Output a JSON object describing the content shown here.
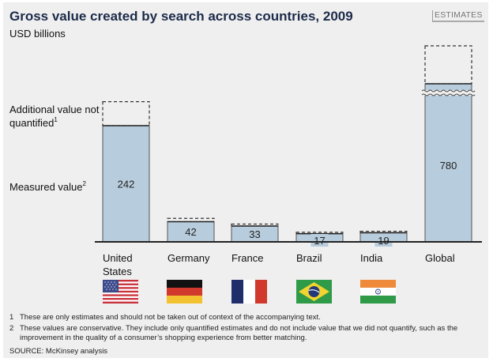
{
  "header": {
    "title": "Gross value created by search across countries, 2009",
    "subtitle": "USD billions",
    "badge": "ESTIMATES"
  },
  "legend": {
    "additional": "Additional value not quantified",
    "additional_sup": "1",
    "measured": "Measured value",
    "measured_sup": "2"
  },
  "chart_data": {
    "type": "bar",
    "title": "Gross value created by search across countries, 2009",
    "ylabel": "USD billions",
    "xlabel": "",
    "categories": [
      "United States",
      "Germany",
      "France",
      "Brazil",
      "India",
      "Global"
    ],
    "series": [
      {
        "name": "Measured value",
        "values": [
          242,
          42,
          33,
          17,
          19,
          780
        ]
      },
      {
        "name": "Additional value not quantified",
        "values": [
          50,
          7,
          4,
          3,
          3,
          80
        ],
        "style": "dashed-outline",
        "estimated": true
      }
    ],
    "axis_break": {
      "category": "Global",
      "note": "bar truncated with break marks"
    },
    "colors": {
      "bar_fill": "#b7ccdc",
      "bar_stroke": "#333333",
      "dashed_stroke": "#333333"
    },
    "grid": false,
    "legend_position": "left"
  },
  "categories_display": [
    {
      "line1": "United",
      "line2": "States",
      "flag": "us-flag"
    },
    {
      "line1": "Germany",
      "line2": "",
      "flag": "germany-flag"
    },
    {
      "line1": "France",
      "line2": "",
      "flag": "france-flag"
    },
    {
      "line1": "Brazil",
      "line2": "",
      "flag": "brazil-flag"
    },
    {
      "line1": "India",
      "line2": "",
      "flag": "india-flag"
    },
    {
      "line1": "Global",
      "line2": "",
      "flag": ""
    }
  ],
  "footnotes": [
    {
      "num": "1",
      "text": "These are only estimates and should not be taken out of context of the accompanying text."
    },
    {
      "num": "2",
      "text": "These values are conservative. They include only quantified estimates and do not include value that we did not quantify, such as the improvement in the quality of a consumer’s shopping experience from better matching."
    }
  ],
  "source": "SOURCE: McKinsey analysis"
}
